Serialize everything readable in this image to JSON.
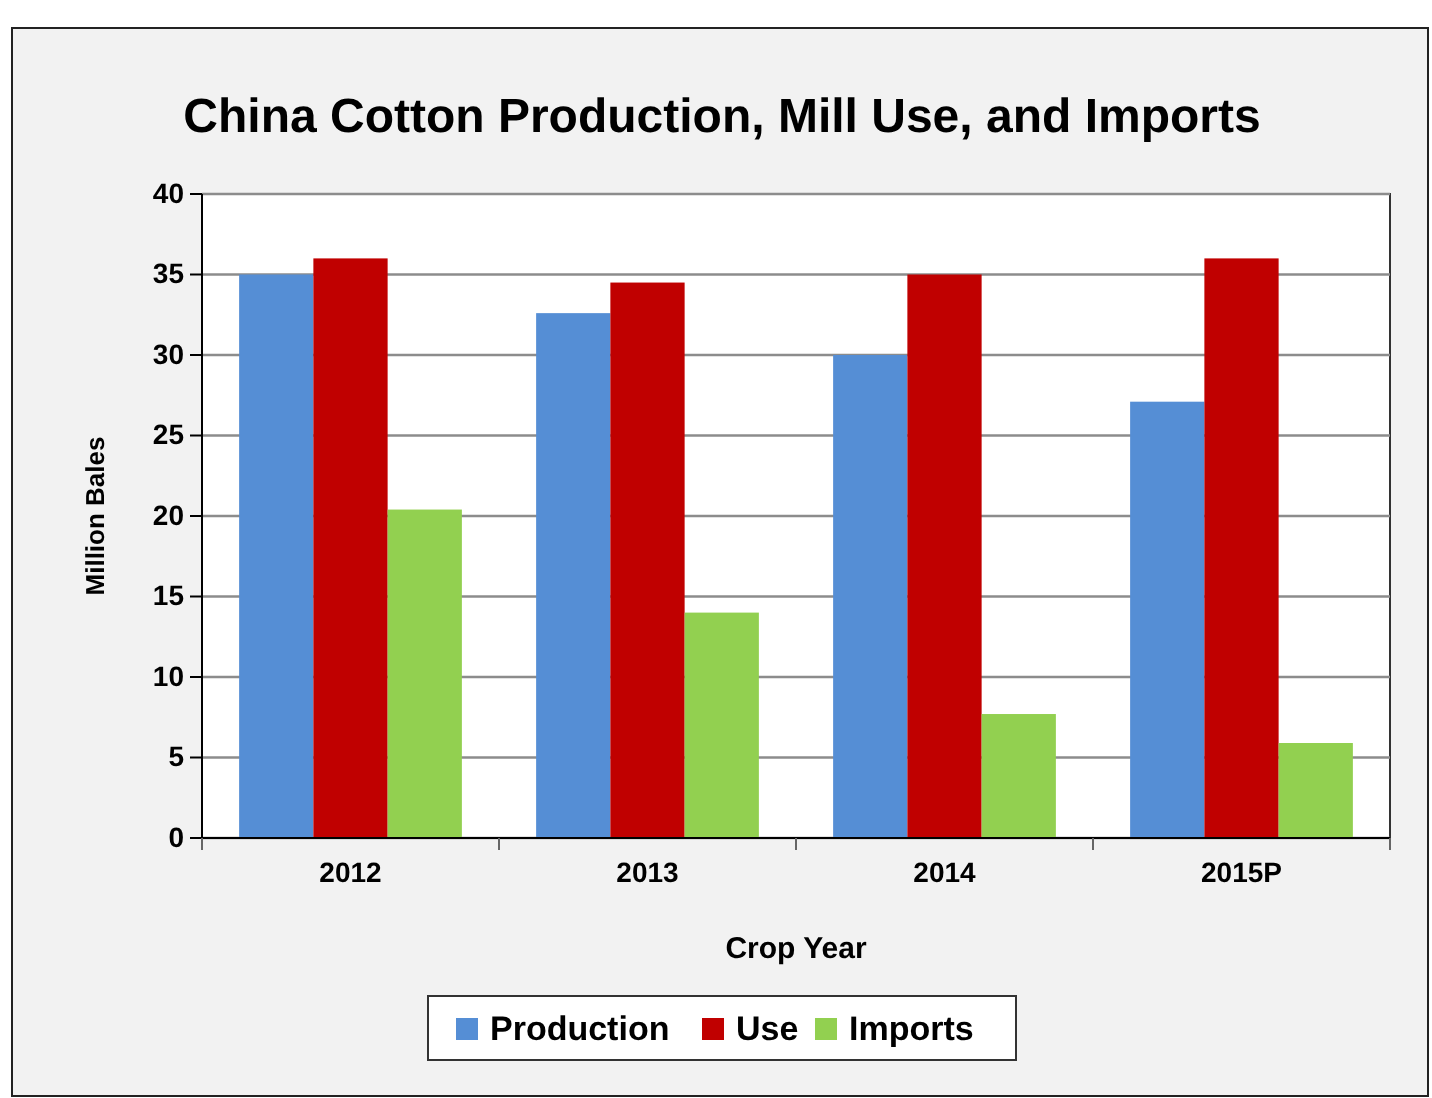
{
  "chart_data": {
    "type": "bar",
    "title": "China Cotton Production, Mill Use, and Imports",
    "xlabel": "Crop Year",
    "ylabel": "Million Bales",
    "categories": [
      "2012",
      "2013",
      "2014",
      "2015P"
    ],
    "series": [
      {
        "name": "Production",
        "color": "#558ed5",
        "values": [
          35.0,
          32.6,
          30.0,
          27.1
        ]
      },
      {
        "name": "Use",
        "color": "#c00000",
        "values": [
          36.0,
          34.5,
          35.0,
          36.0
        ]
      },
      {
        "name": "Imports",
        "color": "#92d050",
        "values": [
          20.4,
          14.0,
          7.7,
          5.9
        ]
      }
    ],
    "ylim": [
      0,
      40
    ],
    "yticks": [
      0,
      5,
      10,
      15,
      20,
      25,
      30,
      35,
      40
    ],
    "grid": "y",
    "legend": "bottom"
  }
}
